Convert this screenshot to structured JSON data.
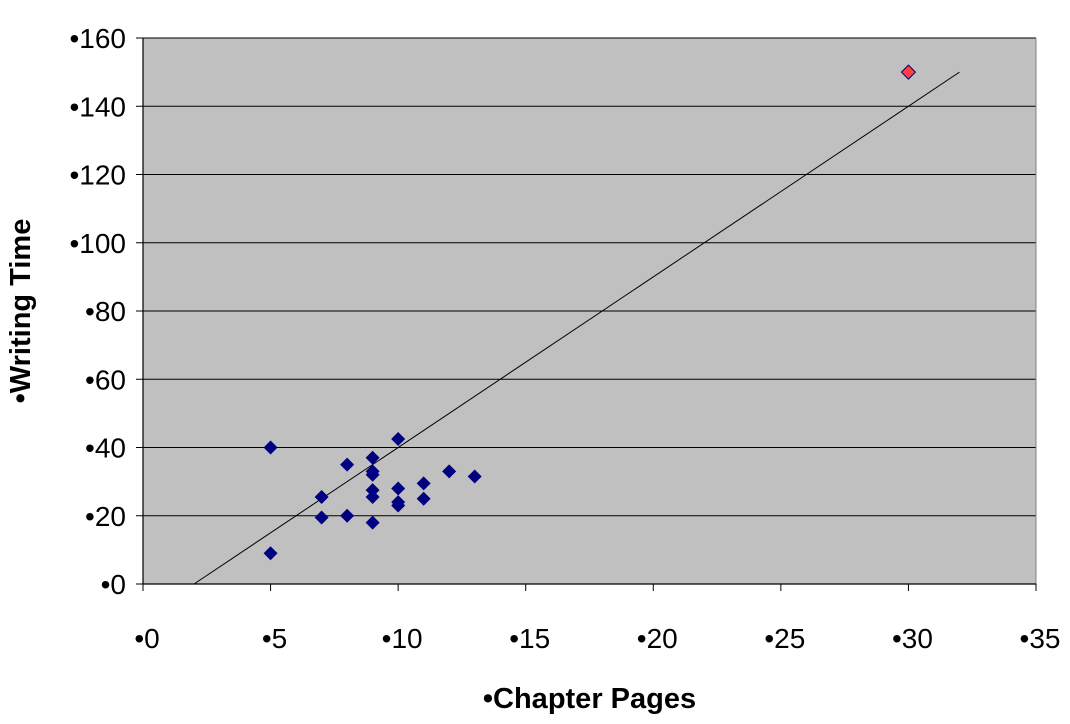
{
  "chart_data": {
    "type": "scatter",
    "xlabel": "•Chapter Pages",
    "ylabel": "•Writing Time",
    "xlim": [
      0,
      35
    ],
    "ylim": [
      0,
      160
    ],
    "x_ticks": [
      "•0",
      "•5",
      "•10",
      "•15",
      "•20",
      "•25",
      "•30",
      "•35"
    ],
    "y_ticks": [
      "•0",
      "•20",
      "•40",
      "•60",
      "•80",
      "•100",
      "•120",
      "•140",
      "•160"
    ],
    "grid": "horizontal",
    "legend": "none",
    "series": [
      {
        "points": [
          [
            5,
            40
          ],
          [
            5,
            9
          ],
          [
            7,
            25.5
          ],
          [
            7,
            19.5
          ],
          [
            8,
            35
          ],
          [
            8,
            20
          ],
          [
            9,
            37
          ],
          [
            9,
            33
          ],
          [
            9,
            32
          ],
          [
            9,
            27.5
          ],
          [
            9,
            25.5
          ],
          [
            9,
            18
          ],
          [
            10,
            42.5
          ],
          [
            10,
            28
          ],
          [
            10,
            24
          ],
          [
            10,
            23
          ],
          [
            11,
            29.5
          ],
          [
            11,
            25
          ],
          [
            12,
            33
          ],
          [
            13,
            31.5
          ]
        ]
      },
      {
        "points": [
          [
            30,
            150
          ]
        ]
      }
    ],
    "trendline": {
      "x": [
        2,
        32
      ],
      "y": [
        0,
        150
      ]
    },
    "colors": {
      "plot_background": "#c0c0c0",
      "main_marker": "#000080",
      "outlier_marker": "#ff4040",
      "gridline": "#000000",
      "trendline": "#000000"
    }
  }
}
